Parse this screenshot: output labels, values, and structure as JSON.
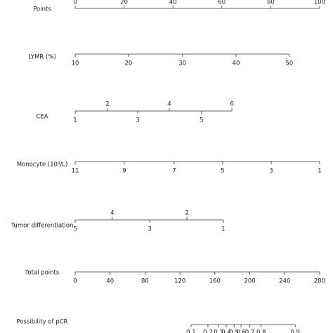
{
  "chart_data": {
    "type": "nomogram",
    "points_axis": {
      "label": "Points",
      "xlim": [
        0,
        100
      ],
      "ticks": [
        0,
        20,
        40,
        60,
        80,
        100
      ]
    },
    "scales": [
      {
        "label": "LYMR (%)",
        "ticks": [
          10,
          20,
          30,
          40,
          50
        ],
        "points": [
          0,
          21.8,
          43.9,
          65.8,
          87.6
        ],
        "alternate": false
      },
      {
        "label": "CEA",
        "ticks": [
          1,
          2,
          3,
          4,
          5,
          6
        ],
        "points": [
          0,
          13.2,
          25.6,
          38.5,
          51.7,
          64.1
        ],
        "alternate": true
      },
      {
        "label": "Monocyte (10⁹/L)",
        "ticks": [
          11,
          9,
          7,
          5,
          3,
          1
        ],
        "points": [
          0,
          20.1,
          40.5,
          60.3,
          80.2,
          100
        ],
        "alternate": false
      },
      {
        "label": "Tumor differentiation",
        "ticks": [
          5,
          4,
          3,
          2,
          1
        ],
        "points": [
          0,
          15.2,
          30.5,
          45.7,
          60.6
        ],
        "alternate": true
      }
    ],
    "total_axis": {
      "label": "Total points",
      "xlim": [
        0,
        280
      ],
      "ticks": [
        0,
        40,
        80,
        120,
        160,
        200,
        240,
        280
      ]
    },
    "probability": {
      "label": "Possibility of pCR",
      "ticks": [
        0.1,
        0.2,
        0.3,
        0.4,
        0.5,
        0.6,
        0.7,
        0.8,
        0.9
      ],
      "total_points": [
        132.7,
        152,
        164,
        173,
        182,
        190,
        200,
        213,
        252
      ]
    }
  }
}
